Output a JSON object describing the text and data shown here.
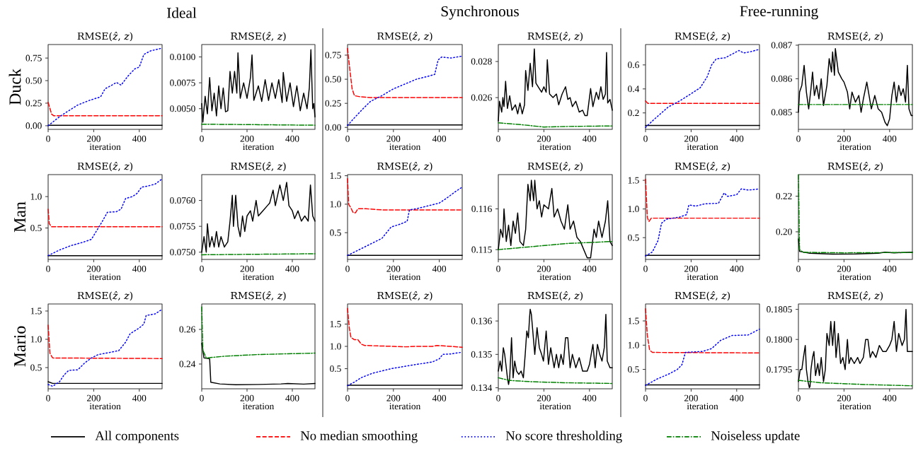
{
  "chart_data": [
    {
      "type": "line",
      "title": "RMSE(*ẑ*, *z*)",
      "xlabel": "iteration",
      "ylabel": "Duck",
      "annotations": [
        "Ideal"
      ],
      "legend": "bottom",
      "xlim": [
        0,
        500
      ],
      "xticks": [
        0,
        200,
        400
      ],
      "ylim": [
        -0.04,
        0.9
      ],
      "yticks": [
        {
          "value": 0,
          "label": "0.00"
        },
        {
          "value": 0.25,
          "label": "0.25"
        },
        {
          "value": 0.5,
          "label": "0.50"
        },
        {
          "value": 0.75,
          "label": "0.75"
        }
      ],
      "series": [
        {
          "name": "All components",
          "color": "#000000",
          "line_style": "solid",
          "x": [
            0,
            500
          ],
          "values": [
            0.005,
            0.005
          ]
        },
        {
          "name": "No median smoothing",
          "color": "#ff0000",
          "line_style": "dashed",
          "x": [
            0,
            15,
            25,
            500
          ],
          "values": [
            0.26,
            0.13,
            0.11,
            0.11
          ]
        },
        {
          "name": "No score thresholding",
          "color": "#0000ff",
          "line_style": "dotted",
          "x": [
            0,
            50,
            80,
            130,
            180,
            230,
            250,
            280,
            300,
            320,
            350,
            380,
            400,
            420,
            450,
            500
          ],
          "values": [
            0,
            0.1,
            0.15,
            0.23,
            0.28,
            0.32,
            0.41,
            0.45,
            0.48,
            0.45,
            0.55,
            0.63,
            0.65,
            0.79,
            0.83,
            0.86
          ]
        }
      ]
    },
    {
      "type": "line",
      "title": "RMSE(*ẑ*, *z*)",
      "xlabel": "iteration",
      "legend": "bottom",
      "xlim": [
        0,
        500
      ],
      "xticks": [
        0,
        200,
        400
      ],
      "ylim": [
        0.003,
        0.0112
      ],
      "yticks": [
        {
          "value": 0.005,
          "label": "0.0050"
        },
        {
          "value": 0.0075,
          "label": "0.0075"
        },
        {
          "value": 0.01,
          "label": "0.0100"
        }
      ],
      "series": [
        {
          "color": "#000000",
          "line_style": "solid",
          "x": [
            0,
            5,
            15,
            25,
            35,
            45,
            55,
            65,
            75,
            85,
            95,
            105,
            115,
            125,
            135,
            145,
            155,
            160,
            170,
            185,
            200,
            215,
            222,
            230,
            250,
            265,
            280,
            295,
            310,
            325,
            340,
            355,
            360,
            375,
            390,
            405,
            420,
            435,
            450,
            465,
            475,
            482,
            490,
            495,
            500
          ],
          "values": [
            0.0055,
            0.0037,
            0.0062,
            0.0045,
            0.008,
            0.0048,
            0.0065,
            0.0043,
            0.0072,
            0.005,
            0.007,
            0.0047,
            0.0048,
            0.0086,
            0.0065,
            0.0086,
            0.0065,
            0.0104,
            0.006,
            0.0075,
            0.006,
            0.008,
            0.0102,
            0.0058,
            0.0072,
            0.0057,
            0.0078,
            0.0058,
            0.0075,
            0.006,
            0.0078,
            0.0056,
            0.0085,
            0.0057,
            0.0075,
            0.0052,
            0.0072,
            0.0048,
            0.0065,
            0.005,
            0.007,
            0.0107,
            0.005,
            0.0055,
            0.0042
          ]
        },
        {
          "name": "Noiseless update",
          "color": "#008000",
          "line_style": "dashdot",
          "x": [
            0,
            500
          ],
          "values": [
            0.0035,
            0.0034
          ]
        }
      ]
    },
    {
      "type": "line",
      "title": "RMSE(*ẑ*, *z*)",
      "xlabel": "iteration",
      "annotations": [
        "Synchronous"
      ],
      "xlim": [
        0,
        500
      ],
      "xticks": [
        0,
        200,
        400
      ],
      "ylim": [
        -0.02,
        0.86
      ],
      "yticks": [
        {
          "value": 0,
          "label": "0.00"
        },
        {
          "value": 0.25,
          "label": "0.25"
        },
        {
          "value": 0.5,
          "label": "0.50"
        },
        {
          "value": 0.75,
          "label": "0.75"
        }
      ],
      "series": [
        {
          "color": "#000000",
          "line_style": "solid",
          "x": [
            0,
            500
          ],
          "values": [
            0.025,
            0.025
          ]
        },
        {
          "color": "#ff0000",
          "line_style": "dashed",
          "x": [
            0,
            10,
            20,
            30,
            50,
            100,
            500
          ],
          "values": [
            0.82,
            0.6,
            0.4,
            0.33,
            0.32,
            0.31,
            0.31
          ]
        },
        {
          "color": "#0000ff",
          "line_style": "dotted",
          "x": [
            0,
            30,
            70,
            100,
            150,
            200,
            250,
            300,
            350,
            380,
            395,
            410,
            450,
            500
          ],
          "values": [
            0.02,
            0.1,
            0.2,
            0.27,
            0.33,
            0.4,
            0.45,
            0.5,
            0.53,
            0.55,
            0.7,
            0.73,
            0.72,
            0.74
          ]
        }
      ]
    },
    {
      "type": "line",
      "title": "RMSE(*ẑ*, *z*)",
      "xlabel": "iteration",
      "xlim": [
        0,
        500
      ],
      "xticks": [
        0,
        200,
        400
      ],
      "ylim": [
        0.02424,
        0.02894
      ],
      "yticks": [
        0.026,
        0.028
      ],
      "series": [
        {
          "color": "#000000",
          "line_style": "solid",
          "x": [
            0,
            5,
            15,
            20,
            25,
            32,
            40,
            50,
            60,
            75,
            85,
            95,
            105,
            115,
            120,
            130,
            140,
            150,
            158,
            165,
            180,
            190,
            200,
            210,
            215,
            225,
            240,
            255,
            265,
            280,
            295,
            305,
            315,
            325,
            340,
            355,
            370,
            380,
            390,
            400,
            405,
            415,
            430,
            440,
            450,
            460,
            470,
            475,
            480,
            490,
            500
          ],
          "values": [
            0.0247,
            0.0258,
            0.0252,
            0.026,
            0.0255,
            0.0269,
            0.0254,
            0.0261,
            0.0253,
            0.0256,
            0.0251,
            0.0257,
            0.0251,
            0.0256,
            0.0275,
            0.0264,
            0.0279,
            0.0266,
            0.0287,
            0.0268,
            0.0265,
            0.0263,
            0.0266,
            0.0263,
            0.0281,
            0.0262,
            0.026,
            0.0262,
            0.0256,
            0.0262,
            0.0266,
            0.0259,
            0.026,
            0.0255,
            0.0258,
            0.0252,
            0.0253,
            0.025,
            0.025,
            0.026,
            0.0265,
            0.0255,
            0.0263,
            0.0259,
            0.0266,
            0.0259,
            0.0262,
            0.0285,
            0.0257,
            0.0259,
            0.0253
          ]
        },
        {
          "color": "#008000",
          "line_style": "dashdot",
          "x": [
            0,
            100,
            200,
            300,
            500
          ],
          "values": [
            0.0246,
            0.0245,
            0.02437,
            0.0244,
            0.02443
          ]
        }
      ]
    },
    {
      "type": "line",
      "title": "RMSE(*ẑ*, *z*)",
      "xlabel": "iteration",
      "annotations": [
        "Free-running"
      ],
      "xlim": [
        0,
        500
      ],
      "xticks": [
        0,
        200,
        400
      ],
      "ylim": [
        0.063,
        0.77
      ],
      "yticks": [
        0.2,
        0.4,
        0.6
      ],
      "series": [
        {
          "color": "#000000",
          "line_style": "solid",
          "x": [
            0,
            500
          ],
          "values": [
            0.095,
            0.095
          ]
        },
        {
          "color": "#ff0000",
          "line_style": "dashed",
          "x": [
            0,
            10,
            500
          ],
          "values": [
            0.3,
            0.28,
            0.28
          ]
        },
        {
          "color": "#0000ff",
          "line_style": "dotted",
          "x": [
            0,
            40,
            100,
            150,
            200,
            240,
            270,
            290,
            310,
            350,
            390,
            410,
            430,
            460,
            500
          ],
          "values": [
            0.08,
            0.15,
            0.25,
            0.3,
            0.36,
            0.41,
            0.5,
            0.6,
            0.65,
            0.66,
            0.7,
            0.72,
            0.7,
            0.71,
            0.73
          ]
        }
      ]
    },
    {
      "type": "line",
      "title": "RMSE(*ẑ*, *z*)",
      "xlabel": "iteration",
      "xlim": [
        0,
        500
      ],
      "xticks": [
        0,
        200,
        400
      ],
      "ylim": [
        0.08449,
        0.08702
      ],
      "yticks": [
        0.085,
        0.086,
        0.087
      ],
      "series": [
        {
          "color": "#000000",
          "line_style": "solid",
          "x": [
            0,
            5,
            15,
            25,
            35,
            45,
            55,
            62,
            70,
            80,
            90,
            100,
            110,
            125,
            135,
            145,
            150,
            158,
            162,
            175,
            190,
            200,
            215,
            225,
            235,
            250,
            265,
            275,
            285,
            300,
            310,
            320,
            335,
            350,
            365,
            380,
            390,
            400,
            410,
            420,
            430,
            440,
            450,
            460,
            470,
            478,
            485,
            495,
            500
          ],
          "values": [
            0.085,
            0.0856,
            0.0858,
            0.0864,
            0.0856,
            0.0851,
            0.0857,
            0.0862,
            0.0855,
            0.0858,
            0.0854,
            0.086,
            0.0852,
            0.0858,
            0.0866,
            0.0862,
            0.0868,
            0.0861,
            0.0869,
            0.0862,
            0.086,
            0.0859,
            0.0856,
            0.0851,
            0.0856,
            0.0853,
            0.0855,
            0.085,
            0.0854,
            0.0859,
            0.0855,
            0.0851,
            0.0855,
            0.0851,
            0.085,
            0.0847,
            0.0846,
            0.0848,
            0.0855,
            0.0859,
            0.0853,
            0.0858,
            0.0855,
            0.0857,
            0.0853,
            0.0864,
            0.0851,
            0.0849,
            0.0849
          ]
        },
        {
          "color": "#008000",
          "line_style": "dashdot",
          "x": [
            0,
            500
          ],
          "values": [
            0.08523,
            0.08523
          ]
        }
      ]
    },
    {
      "type": "line",
      "title": "RMSE(*ẑ*, *z*)",
      "xlabel": "iteration",
      "ylabel": "Man",
      "xlim": [
        0,
        500
      ],
      "xticks": [
        0,
        200,
        400
      ],
      "ylim": [
        0,
        1.35
      ],
      "yticks": [
        0.5,
        {
          "value": 1,
          "label": "1.0"
        }
      ],
      "series": [
        {
          "color": "#000000",
          "line_style": "solid",
          "x": [
            0,
            500
          ],
          "values": [
            0.06,
            0.06
          ]
        },
        {
          "color": "#ff0000",
          "line_style": "dashed",
          "x": [
            0,
            5,
            15,
            500
          ],
          "values": [
            0.8,
            0.57,
            0.52,
            0.52
          ]
        },
        {
          "color": "#0000ff",
          "line_style": "dotted",
          "x": [
            0,
            50,
            100,
            150,
            190,
            220,
            240,
            260,
            300,
            320,
            340,
            370,
            390,
            410,
            440,
            470,
            500
          ],
          "values": [
            0.06,
            0.15,
            0.22,
            0.27,
            0.32,
            0.5,
            0.62,
            0.75,
            0.76,
            0.8,
            0.97,
            1,
            1.05,
            1.15,
            1.17,
            1.2,
            1.28
          ]
        }
      ]
    },
    {
      "type": "line",
      "title": "RMSE(*ẑ*, *z*)",
      "xlabel": "iteration",
      "xlim": [
        0,
        500
      ],
      "xticks": [
        0,
        200,
        400
      ],
      "ylim": [
        0.07486,
        0.0765
      ],
      "yticks": [
        {
          "value": 0.075,
          "label": "0.0750"
        },
        0.0755,
        {
          "value": 0.076,
          "label": "0.0760"
        }
      ],
      "series": [
        {
          "color": "#000000",
          "line_style": "solid",
          "x": [
            0,
            10,
            20,
            25,
            35,
            45,
            55,
            65,
            75,
            85,
            100,
            115,
            125,
            135,
            140,
            150,
            160,
            170,
            180,
            190,
            200,
            215,
            225,
            240,
            250,
            270,
            290,
            300,
            315,
            325,
            345,
            360,
            375,
            385,
            400,
            410,
            425,
            440,
            455,
            470,
            480,
            490,
            500
          ],
          "values": [
            0.075,
            0.0753,
            0.075,
            0.07555,
            0.0751,
            0.0753,
            0.0751,
            0.0754,
            0.0751,
            0.0753,
            0.0751,
            0.0752,
            0.0756,
            0.0761,
            0.0755,
            0.0761,
            0.0755,
            0.0753,
            0.0757,
            0.0754,
            0.0757,
            0.0758,
            0.0756,
            0.076,
            0.0757,
            0.0758,
            0.0759,
            0.07595,
            0.0762,
            0.0759,
            0.0763,
            0.076,
            0.07635,
            0.0759,
            0.0758,
            0.07565,
            0.0758,
            0.0756,
            0.0757,
            0.0756,
            0.0763,
            0.0757,
            0.0756
          ]
        },
        {
          "color": "#008000",
          "line_style": "dashdot",
          "x": [
            0,
            500
          ],
          "values": [
            0.07495,
            0.07497
          ]
        }
      ]
    },
    {
      "type": "line",
      "title": "RMSE(*ẑ*, *z*)",
      "xlabel": "iteration",
      "xlim": [
        0,
        500
      ],
      "xticks": [
        0,
        200,
        400
      ],
      "ylim": [
        0.03,
        1.52
      ],
      "yticks": [
        0.5,
        {
          "value": 1,
          "label": "1.0"
        },
        1.5
      ],
      "series": [
        {
          "color": "#000000",
          "line_style": "solid",
          "x": [
            0,
            500
          ],
          "values": [
            0.1,
            0.1
          ]
        },
        {
          "color": "#ff0000",
          "line_style": "dashed",
          "x": [
            0,
            5,
            15,
            25,
            35,
            45,
            80,
            150,
            500
          ],
          "values": [
            1.45,
            1,
            0.93,
            0.85,
            0.85,
            0.92,
            0.92,
            0.9,
            0.9
          ]
        },
        {
          "color": "#0000ff",
          "line_style": "dotted",
          "x": [
            0,
            50,
            100,
            150,
            190,
            230,
            260,
            270,
            300,
            350,
            400,
            430,
            470,
            500
          ],
          "values": [
            0.1,
            0.2,
            0.3,
            0.4,
            0.6,
            0.65,
            0.7,
            0.9,
            0.92,
            0.97,
            1.02,
            1.1,
            1.22,
            1.3
          ]
        }
      ]
    },
    {
      "type": "line",
      "title": "RMSE(*ẑ*, *z*)",
      "xlabel": "iteration",
      "xlim": [
        0,
        500
      ],
      "xticks": [
        0,
        200,
        400
      ],
      "ylim": [
        0.11476,
        0.11684
      ],
      "yticks": [
        0.115,
        0.116
      ],
      "series": [
        {
          "color": "#000000",
          "line_style": "solid",
          "x": [
            0,
            10,
            20,
            25,
            35,
            45,
            55,
            65,
            75,
            85,
            95,
            110,
            120,
            130,
            140,
            145,
            155,
            160,
            170,
            180,
            190,
            200,
            220,
            235,
            245,
            260,
            275,
            290,
            305,
            315,
            330,
            345,
            360,
            375,
            390,
            405,
            420,
            430,
            440,
            455,
            470,
            480,
            490,
            500
          ],
          "values": [
            0.115,
            0.1155,
            0.1153,
            0.116,
            0.1152,
            0.1156,
            0.1151,
            0.1157,
            0.1154,
            0.1159,
            0.1152,
            0.1151,
            0.1155,
            0.1166,
            0.1162,
            0.1167,
            0.1162,
            0.1167,
            0.116,
            0.1162,
            0.1158,
            0.1161,
            0.116,
            0.1165,
            0.1158,
            0.116,
            0.1157,
            0.1155,
            0.1161,
            0.1155,
            0.1157,
            0.1153,
            0.1152,
            0.115,
            0.1148,
            0.1148,
            0.1155,
            0.1153,
            0.1157,
            0.1153,
            0.1157,
            0.1162,
            0.1152,
            0.1151
          ]
        },
        {
          "color": "#008000",
          "line_style": "dashdot",
          "x": [
            0,
            100,
            300,
            500
          ],
          "values": [
            0.115,
            0.11505,
            0.11515,
            0.1152
          ]
        }
      ]
    },
    {
      "type": "line",
      "title": "RMSE(*ẑ*, *z*)",
      "xlabel": "iteration",
      "xlim": [
        0,
        500
      ],
      "xticks": [
        0,
        200,
        400
      ],
      "ylim": [
        0.12,
        1.6
      ],
      "yticks": [
        0.5,
        {
          "value": 1,
          "label": "1.0"
        },
        1.5
      ],
      "series": [
        {
          "color": "#000000",
          "line_style": "solid",
          "x": [
            0,
            500
          ],
          "values": [
            0.19,
            0.19
          ]
        },
        {
          "color": "#ff0000",
          "line_style": "dashed",
          "x": [
            0,
            8,
            15,
            25,
            500
          ],
          "values": [
            1.52,
            0.85,
            0.78,
            0.84,
            0.84
          ]
        },
        {
          "color": "#0000ff",
          "line_style": "dotted",
          "x": [
            0,
            30,
            55,
            70,
            90,
            150,
            180,
            190,
            220,
            260,
            320,
            345,
            360,
            400,
            420,
            450,
            500
          ],
          "values": [
            0.18,
            0.25,
            0.45,
            0.75,
            0.82,
            0.86,
            0.9,
            1.07,
            1.05,
            1.09,
            1.1,
            1.28,
            1.22,
            1.25,
            1.35,
            1.33,
            1.35
          ]
        }
      ]
    },
    {
      "type": "line",
      "title": "RMSE(*ẑ*, *z*)",
      "xlabel": "iteration",
      "xlim": [
        0,
        500
      ],
      "xticks": [
        0,
        200,
        400
      ],
      "ylim": [
        0.1845,
        0.2321
      ],
      "yticks": [
        {
          "value": 0.2,
          "label": "0.20"
        },
        0.22
      ],
      "series": [
        {
          "color": "#000000",
          "line_style": "solid",
          "x": [
            0,
            5,
            50,
            150,
            250,
            350,
            380,
            420,
            500
          ],
          "values": [
            0.196,
            0.189,
            0.188,
            0.1875,
            0.1876,
            0.188,
            0.1886,
            0.1882,
            0.1886
          ]
        },
        {
          "color": "#008000",
          "line_style": "dashdot",
          "x": [
            0,
            5,
            20,
            200,
            500
          ],
          "values": [
            0.232,
            0.19,
            0.1885,
            0.1882,
            0.1884
          ]
        }
      ]
    },
    {
      "type": "line",
      "title": "RMSE(*ẑ*, *z*)",
      "xlabel": "iteration",
      "ylabel": "Mario",
      "xlim": [
        0,
        500
      ],
      "xticks": [
        0,
        200,
        400
      ],
      "ylim": [
        0.125,
        1.625
      ],
      "yticks": [
        0.5,
        {
          "value": 1,
          "label": "1.0"
        },
        1.5
      ],
      "series": [
        {
          "color": "#000000",
          "line_style": "solid",
          "x": [
            0,
            20,
            500
          ],
          "values": [
            0.25,
            0.22,
            0.22
          ]
        },
        {
          "color": "#ff0000",
          "line_style": "dashed",
          "x": [
            0,
            8,
            20,
            500
          ],
          "values": [
            1.25,
            0.75,
            0.67,
            0.66
          ]
        },
        {
          "color": "#0000ff",
          "line_style": "dotted",
          "x": [
            0,
            20,
            50,
            70,
            90,
            130,
            160,
            190,
            220,
            260,
            310,
            340,
            360,
            400,
            420,
            430,
            470,
            500
          ],
          "values": [
            0.2,
            0.17,
            0.25,
            0.37,
            0.45,
            0.46,
            0.58,
            0.67,
            0.73,
            0.76,
            0.8,
            0.95,
            1.1,
            1.2,
            1.27,
            1.42,
            1.45,
            1.53
          ]
        }
      ]
    },
    {
      "type": "line",
      "title": "RMSE(*ẑ*, *z*)",
      "xlabel": "iteration",
      "xlim": [
        0,
        500
      ],
      "xticks": [
        0,
        200,
        400
      ],
      "ylim": [
        0.2257,
        0.2747
      ],
      "yticks": [
        0.24,
        0.26
      ],
      "series": [
        {
          "color": "#000000",
          "line_style": "solid",
          "x": [
            0,
            10,
            35,
            40,
            80,
            150,
            250,
            350,
            380,
            450,
            500
          ],
          "values": [
            0.252,
            0.2435,
            0.243,
            0.2295,
            0.2285,
            0.228,
            0.2282,
            0.2285,
            0.2288,
            0.2284,
            0.2288
          ]
        },
        {
          "color": "#008000",
          "line_style": "dashdot",
          "x": [
            0,
            5,
            20,
            100,
            250,
            500
          ],
          "values": [
            0.273,
            0.248,
            0.2435,
            0.2445,
            0.2455,
            0.2463
          ]
        }
      ]
    },
    {
      "type": "line",
      "title": "RMSE(*ẑ*, *z*)",
      "xlabel": "iteration",
      "xlim": [
        0,
        500
      ],
      "xticks": [
        0,
        200,
        400
      ],
      "ylim": [
        0.05,
        1.95
      ],
      "yticks": [
        0.5,
        {
          "value": 1,
          "label": "1.0"
        },
        1.5
      ],
      "series": [
        {
          "color": "#000000",
          "line_style": "solid",
          "x": [
            0,
            500
          ],
          "values": [
            0.13,
            0.13
          ]
        },
        {
          "color": "#ff0000",
          "line_style": "dashed",
          "x": [
            0,
            8,
            15,
            30,
            45,
            60,
            75,
            200,
            250,
            300,
            370,
            390,
            450,
            500
          ],
          "values": [
            1.85,
            1.4,
            1.2,
            1.15,
            1.15,
            1.05,
            1.02,
            1,
            0.99,
            1,
            1,
            1.02,
            1,
            0.98
          ]
        },
        {
          "color": "#0000ff",
          "line_style": "dotted",
          "x": [
            0,
            30,
            60,
            110,
            190,
            280,
            370,
            400,
            415,
            450,
            500
          ],
          "values": [
            0.12,
            0.2,
            0.3,
            0.4,
            0.5,
            0.58,
            0.65,
            0.72,
            0.82,
            0.83,
            0.87
          ]
        }
      ]
    },
    {
      "type": "line",
      "title": "RMSE(*ẑ*, *z*)",
      "xlabel": "iteration",
      "xlim": [
        0,
        500
      ],
      "xticks": [
        0,
        200,
        400
      ],
      "ylim": [
        0.13397,
        0.13651
      ],
      "yticks": [
        0.134,
        0.135,
        0.136
      ],
      "series": [
        {
          "color": "#000000",
          "line_style": "solid",
          "x": [
            0,
            8,
            15,
            22,
            28,
            35,
            40,
            45,
            50,
            58,
            65,
            72,
            80,
            90,
            100,
            110,
            118,
            125,
            132,
            137,
            140,
            145,
            150,
            160,
            170,
            180,
            190,
            198,
            210,
            220,
            230,
            245,
            255,
            265,
            275,
            285,
            295,
            305,
            315,
            325,
            340,
            355,
            370,
            390,
            400,
            415,
            425,
            435,
            445,
            455,
            465,
            472,
            478,
            490,
            500
          ],
          "values": [
            0.1345,
            0.1348,
            0.1345,
            0.1352,
            0.135,
            0.1346,
            0.1343,
            0.1341,
            0.1343,
            0.1355,
            0.1343,
            0.1348,
            0.1345,
            0.1344,
            0.1345,
            0.1343,
            0.135,
            0.1357,
            0.1355,
            0.1361,
            0.13635,
            0.1362,
            0.1358,
            0.135,
            0.1358,
            0.1352,
            0.135,
            0.1348,
            0.1357,
            0.1347,
            0.1352,
            0.1346,
            0.135,
            0.1346,
            0.135,
            0.1347,
            0.1355,
            0.1355,
            0.1346,
            0.135,
            0.1346,
            0.1349,
            0.1345,
            0.1345,
            0.1347,
            0.1353,
            0.1346,
            0.1353,
            0.135,
            0.1348,
            0.1352,
            0.1362,
            0.1348,
            0.1346,
            0.1346
          ]
        },
        {
          "color": "#008000",
          "line_style": "dashdot",
          "x": [
            0,
            50,
            150,
            300,
            500
          ],
          "values": [
            0.1343,
            0.13422,
            0.13418,
            0.13415,
            0.13413
          ]
        }
      ]
    },
    {
      "type": "line",
      "title": "RMSE(*ẑ*, *z*)",
      "xlabel": "iteration",
      "xlim": [
        0,
        500
      ],
      "xticks": [
        0,
        200,
        400
      ],
      "ylim": [
        0.1,
        1.85
      ],
      "yticks": [
        0.5,
        {
          "value": 1,
          "label": "1.0"
        },
        1.5
      ],
      "series": [
        {
          "color": "#000000",
          "line_style": "solid",
          "x": [
            0,
            500
          ],
          "values": [
            0.18,
            0.18
          ]
        },
        {
          "color": "#ff0000",
          "line_style": "dashed",
          "x": [
            0,
            8,
            18,
            30,
            500
          ],
          "values": [
            1.75,
            1.2,
            0.9,
            0.85,
            0.84
          ]
        },
        {
          "color": "#0000ff",
          "line_style": "dotted",
          "x": [
            0,
            50,
            100,
            140,
            160,
            175,
            250,
            290,
            330,
            380,
            450,
            500
          ],
          "values": [
            0.17,
            0.3,
            0.4,
            0.5,
            0.6,
            0.85,
            0.87,
            0.93,
            1.1,
            1.2,
            1.21,
            1.33
          ]
        }
      ]
    },
    {
      "type": "line",
      "title": "RMSE(*ẑ*, *z*)",
      "xlabel": "iteration",
      "xlim": [
        0,
        500
      ],
      "xticks": [
        0,
        200,
        400
      ],
      "ylim": [
        0.17918,
        0.18059
      ],
      "yticks": [
        0.1795,
        {
          "value": 0.18,
          "label": "0.1800"
        },
        0.1805
      ],
      "series": [
        {
          "color": "#000000",
          "line_style": "solid",
          "x": [
            0,
            8,
            15,
            22,
            30,
            35,
            42,
            48,
            51,
            55,
            62,
            68,
            75,
            85,
            92,
            100,
            110,
            118,
            125,
            135,
            142,
            150,
            158,
            165,
            175,
            185,
            195,
            205,
            215,
            222,
            230,
            245,
            260,
            270,
            285,
            295,
            305,
            315,
            325,
            340,
            355,
            370,
            385,
            400,
            410,
            420,
            430,
            440,
            455,
            465,
            472,
            478,
            490,
            500
          ],
          "values": [
            0.1793,
            0.1795,
            0.1795,
            0.1797,
            0.1799,
            0.1795,
            0.1793,
            0.1792,
            0.17922,
            0.1795,
            0.1797,
            0.1798,
            0.1794,
            0.1796,
            0.1794,
            0.1797,
            0.1793,
            0.1795,
            0.1801,
            0.1799,
            0.1803,
            0.1799,
            0.1803,
            0.1797,
            0.1801,
            0.1796,
            0.1797,
            0.1795,
            0.18,
            0.1796,
            0.1797,
            0.1796,
            0.1797,
            0.1796,
            0.1797,
            0.18,
            0.18,
            0.1797,
            0.1798,
            0.1797,
            0.1799,
            0.1798,
            0.1798,
            0.1799,
            0.18,
            0.1803,
            0.1798,
            0.1801,
            0.1799,
            0.18,
            0.1805,
            0.1798,
            0.1798,
            0.1798
          ]
        },
        {
          "color": "#008000",
          "line_style": "dashdot",
          "x": [
            0,
            100,
            300,
            500
          ],
          "values": [
            0.17932,
            0.17928,
            0.17925,
            0.17923
          ]
        }
      ]
    }
  ]
}
